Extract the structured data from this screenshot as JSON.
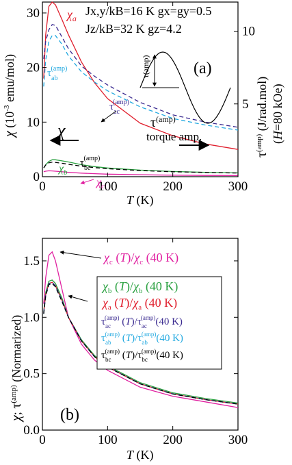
{
  "colors": {
    "chi_a": "#e0202e",
    "chi_b": "#2aa040",
    "chi_c": "#e020a0",
    "tau_ac": "#3a2a90",
    "tau_ab": "#20a8e0",
    "tau_bc": "#000000"
  },
  "chart_data": [
    {
      "type": "line",
      "panel_label": "(a)",
      "xlabel": "T (K)",
      "ylabel_left": "χ (10⁻³ emu/mol)",
      "ylabel_right": "τ(amp) (J/rad.mol) (H=80 kOe)",
      "xlim": [
        0,
        300
      ],
      "ylim_left": [
        0,
        32
      ],
      "ylim_right": [
        0,
        12
      ],
      "x_ticks": [
        "0",
        "100",
        "200",
        "300"
      ],
      "y_ticks_left": [
        "0",
        "10",
        "20",
        "30"
      ],
      "y_ticks_right": [
        "5",
        "10"
      ],
      "params": {
        "line1": "Jx,y/kB=16 K  gx=gy=0.5",
        "line2": "Jz/kB=32 K  gz=4.2"
      },
      "annotations": {
        "chi_arrow": "χ",
        "torque_label": "τ(amp)",
        "torque_amp": "torque amp.",
        "inset_label": "τ(amp)"
      },
      "x": [
        2,
        5,
        10,
        15,
        20,
        30,
        40,
        60,
        80,
        100,
        150,
        200,
        250,
        300
      ],
      "series": [
        {
          "name": "χa",
          "axis": "left",
          "style": "solid",
          "color_key": "chi_a",
          "values": [
            18,
            26,
            31.2,
            32,
            31.5,
            28.8,
            26,
            21,
            17.2,
            14.3,
            9.8,
            7.5,
            6.0,
            5.0
          ]
        },
        {
          "name": "χb",
          "axis": "left",
          "style": "solid",
          "color_key": "chi_b",
          "values": [
            1.6,
            2.2,
            2.8,
            3.1,
            3.1,
            2.9,
            2.7,
            2.2,
            1.85,
            1.6,
            1.2,
            0.95,
            0.8,
            0.7
          ]
        },
        {
          "name": "χc",
          "axis": "left",
          "style": "solid",
          "color_key": "chi_c",
          "values": [
            0.9,
            1.0,
            1.08,
            1.05,
            1.0,
            0.9,
            0.8,
            0.65,
            0.55,
            0.47,
            0.35,
            0.28,
            0.23,
            0.2
          ]
        },
        {
          "name": "τac(amp)",
          "axis": "right",
          "style": "dashed",
          "color_key": "tau_ac",
          "values": [
            8.1,
            9.3,
            10.1,
            10.45,
            10.4,
            9.6,
            8.8,
            7.6,
            6.9,
            6.3,
            5.1,
            4.25,
            3.75,
            3.4
          ]
        },
        {
          "name": "τab(amp)",
          "axis": "right",
          "style": "dashed",
          "color_key": "tau_ab",
          "values": [
            6.2,
            8.0,
            9.3,
            9.7,
            9.7,
            9.1,
            8.3,
            7.2,
            6.5,
            5.9,
            4.8,
            4.0,
            3.55,
            3.2
          ]
        },
        {
          "name": "τbc(amp)",
          "axis": "right",
          "style": "dashed",
          "color_key": "tau_bc",
          "values": [
            0.6,
            0.8,
            0.95,
            1.0,
            0.98,
            0.92,
            0.85,
            0.72,
            0.62,
            0.55,
            0.42,
            0.34,
            0.29,
            0.25
          ]
        }
      ]
    },
    {
      "type": "line",
      "panel_label": "(b)",
      "xlabel": "T (K)",
      "ylabel": "χ; τ(amp) (Normarized)",
      "xlim": [
        0,
        300
      ],
      "ylim": [
        0,
        1.7
      ],
      "x_ticks": [
        "0",
        "100",
        "200",
        "300"
      ],
      "y_ticks": [
        "0.0",
        "0.5",
        "1.0",
        "1.5"
      ],
      "annotations": {
        "chi_c_label": "χc (T)/χc (40 K)"
      },
      "legend": [
        {
          "text": "χb (T)/χb (40 K)",
          "color_key": "chi_b"
        },
        {
          "text": "χa (T)/χa (40 K)",
          "color_key": "chi_a"
        },
        {
          "text": "τac(amp) (T)/τac(amp)(40 K)",
          "color_key": "tau_ac"
        },
        {
          "text": "τab(amp) (T)/τab(amp)(40 K)",
          "color_key": "tau_ab"
        },
        {
          "text": "τbc(amp) (T)/τbc(amp)(40 K)",
          "color_key": "tau_bc"
        }
      ],
      "x": [
        2,
        5,
        10,
        15,
        20,
        30,
        40,
        60,
        80,
        100,
        150,
        200,
        250,
        300
      ],
      "series": [
        {
          "name": "χc",
          "style": "solid",
          "color_key": "chi_c",
          "values": [
            1.12,
            1.35,
            1.55,
            1.58,
            1.5,
            1.25,
            1.0,
            0.76,
            0.62,
            0.53,
            0.38,
            0.3,
            0.25,
            0.2
          ]
        },
        {
          "name": "χb",
          "style": "solid",
          "color_key": "chi_b",
          "values": [
            1.05,
            1.22,
            1.32,
            1.33,
            1.3,
            1.17,
            1.0,
            0.8,
            0.66,
            0.57,
            0.42,
            0.33,
            0.28,
            0.24
          ]
        },
        {
          "name": "χa",
          "style": "solid",
          "color_key": "chi_a",
          "values": [
            1.04,
            1.2,
            1.3,
            1.31,
            1.28,
            1.15,
            1.0,
            0.79,
            0.65,
            0.56,
            0.41,
            0.32,
            0.27,
            0.23
          ]
        },
        {
          "name": "τac",
          "style": "dashed",
          "color_key": "tau_ac",
          "values": [
            1.04,
            1.2,
            1.3,
            1.31,
            1.28,
            1.15,
            1.0,
            0.79,
            0.65,
            0.56,
            0.41,
            0.32,
            0.27,
            0.23
          ]
        },
        {
          "name": "τab",
          "style": "dashed",
          "color_key": "tau_ab",
          "values": [
            1.03,
            1.19,
            1.29,
            1.3,
            1.27,
            1.14,
            1.0,
            0.79,
            0.65,
            0.56,
            0.41,
            0.32,
            0.27,
            0.23
          ]
        },
        {
          "name": "τbc",
          "style": "dashed",
          "color_key": "tau_bc",
          "values": [
            1.03,
            1.19,
            1.29,
            1.3,
            1.27,
            1.14,
            1.0,
            0.79,
            0.65,
            0.56,
            0.41,
            0.32,
            0.27,
            0.23
          ]
        }
      ]
    }
  ]
}
